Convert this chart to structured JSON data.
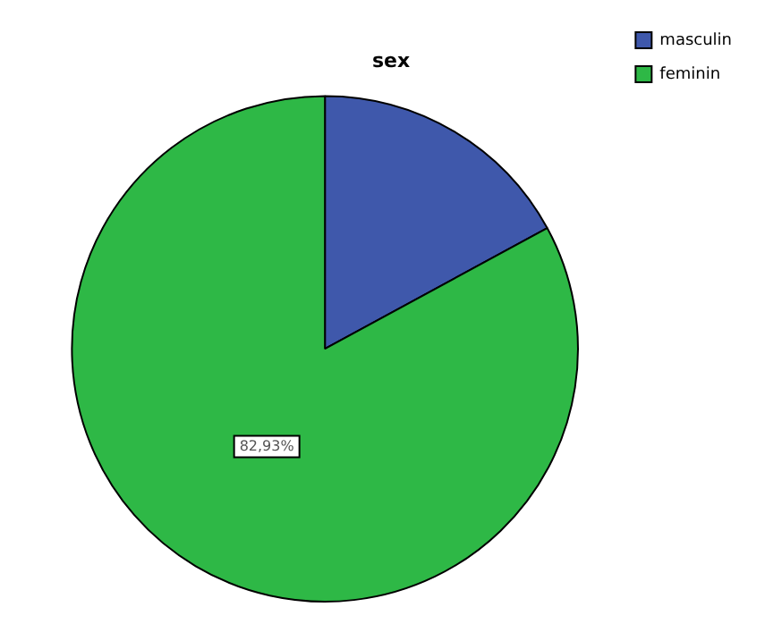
{
  "chart_data": {
    "type": "pie",
    "title": "sex",
    "categories": [
      "masculin",
      "feminin"
    ],
    "values": [
      17.07,
      82.93
    ],
    "colors": [
      "#3f58ab",
      "#2eb846"
    ],
    "value_labels": [
      null,
      "82,93%"
    ],
    "legend": "top right"
  }
}
